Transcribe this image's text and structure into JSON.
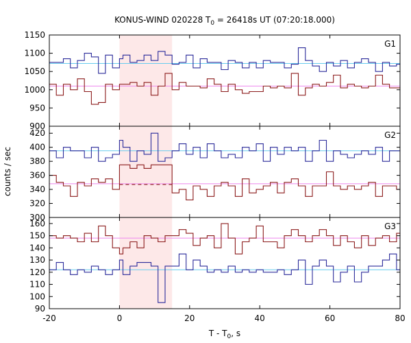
{
  "chart_data": {
    "type": "line",
    "title": {
      "main": "KONUS-WIND 020228 T",
      "sub": "0",
      "rest": " = 26418s UT (07:20:18.000)"
    },
    "xlabel": {
      "main": "T - T",
      "sub": "0",
      "rest": ", s"
    },
    "ylabel": "counts / sec",
    "x_range": [
      -20,
      80
    ],
    "x_ticks": [
      -20,
      0,
      20,
      40,
      60,
      80
    ],
    "highlight_region": {
      "x_start": 0,
      "x_end": 15,
      "color": "#fde8e8"
    },
    "colors": {
      "blue": "#2a2a9a",
      "red": "#8b1a1a",
      "cyan": "#66ccee",
      "pink": "#ee88ee"
    },
    "bin_edges": [
      -20,
      -18,
      -16,
      -14,
      -12,
      -10,
      -8,
      -6,
      -4,
      -2,
      0,
      1,
      3,
      5,
      7,
      9,
      11,
      13,
      15,
      17,
      19,
      21,
      23,
      25,
      27,
      29,
      31,
      33,
      35,
      37,
      39,
      41,
      43,
      45,
      47,
      49,
      51,
      53,
      55,
      57,
      59,
      61,
      63,
      65,
      67,
      69,
      71,
      73,
      75,
      77,
      79,
      80
    ],
    "panels": [
      {
        "label": "G1",
        "y_range": [
          900,
          1150
        ],
        "y_ticks": [
          900,
          950,
          1000,
          1050,
          1100,
          1150
        ],
        "blue": {
          "values": [
            1075,
            1075,
            1085,
            1060,
            1080,
            1100,
            1090,
            1045,
            1095,
            1060,
            1085,
            1095,
            1075,
            1080,
            1095,
            1080,
            1105,
            1095,
            1070,
            1075,
            1095,
            1060,
            1085,
            1075,
            1075,
            1055,
            1080,
            1075,
            1060,
            1075,
            1060,
            1080,
            1075,
            1075,
            1060,
            1070,
            1115,
            1080,
            1065,
            1050,
            1075,
            1065,
            1080,
            1060,
            1075,
            1085,
            1075,
            1050,
            1075,
            1065,
            1070
          ],
          "baseline": 1072
        },
        "red": {
          "values": [
            1015,
            985,
            1015,
            1000,
            1030,
            995,
            960,
            965,
            1015,
            1000,
            1015,
            1015,
            1020,
            1010,
            1020,
            985,
            1010,
            1045,
            1000,
            1020,
            1010,
            1010,
            1005,
            1030,
            1015,
            995,
            1015,
            1000,
            990,
            995,
            995,
            1010,
            1005,
            1010,
            1005,
            1045,
            985,
            1005,
            1015,
            1010,
            1020,
            1040,
            1005,
            1015,
            1010,
            1005,
            1010,
            1040,
            1015,
            1005,
            1005
          ],
          "baseline": 1010
        }
      },
      {
        "label": "G2",
        "y_range": [
          300,
          430
        ],
        "y_ticks": [
          300,
          320,
          340,
          360,
          380,
          400,
          420
        ],
        "blue": {
          "values": [
            395,
            385,
            400,
            395,
            395,
            385,
            400,
            380,
            385,
            390,
            410,
            400,
            380,
            395,
            390,
            420,
            380,
            385,
            395,
            405,
            390,
            400,
            385,
            405,
            395,
            385,
            390,
            385,
            400,
            395,
            405,
            380,
            400,
            390,
            400,
            395,
            400,
            380,
            395,
            410,
            380,
            395,
            390,
            385,
            390,
            395,
            390,
            400,
            380,
            395,
            395
          ],
          "baseline": 395
        },
        "red": {
          "values": [
            360,
            350,
            345,
            330,
            350,
            345,
            355,
            350,
            355,
            340,
            375,
            375,
            370,
            375,
            370,
            375,
            375,
            375,
            335,
            340,
            325,
            345,
            340,
            330,
            345,
            350,
            345,
            330,
            355,
            335,
            340,
            345,
            350,
            335,
            350,
            355,
            345,
            330,
            345,
            345,
            365,
            345,
            340,
            345,
            340,
            345,
            350,
            330,
            345,
            345,
            340
          ],
          "baseline": 348
        },
        "dashed_segment": {
          "x_start": 0,
          "x_end": 15,
          "y": 347
        }
      },
      {
        "label": "G3",
        "y_range": [
          90,
          165
        ],
        "y_ticks": [
          90,
          100,
          110,
          120,
          130,
          140,
          150,
          160
        ],
        "blue": {
          "values": [
            122,
            128,
            122,
            118,
            122,
            120,
            125,
            122,
            118,
            122,
            130,
            118,
            125,
            128,
            128,
            125,
            95,
            125,
            125,
            135,
            122,
            130,
            125,
            120,
            122,
            120,
            125,
            120,
            122,
            120,
            122,
            120,
            120,
            122,
            118,
            122,
            130,
            110,
            125,
            130,
            125,
            112,
            120,
            125,
            112,
            120,
            125,
            125,
            130,
            135,
            122
          ],
          "baseline": 122
        },
        "red": {
          "values": [
            150,
            148,
            150,
            148,
            145,
            152,
            145,
            158,
            150,
            140,
            135,
            140,
            145,
            140,
            150,
            148,
            145,
            150,
            150,
            155,
            152,
            142,
            148,
            150,
            140,
            160,
            148,
            135,
            145,
            148,
            158,
            145,
            145,
            140,
            150,
            155,
            150,
            145,
            150,
            155,
            150,
            142,
            150,
            145,
            140,
            150,
            142,
            148,
            150,
            145,
            152
          ],
          "baseline": 148
        }
      }
    ]
  }
}
